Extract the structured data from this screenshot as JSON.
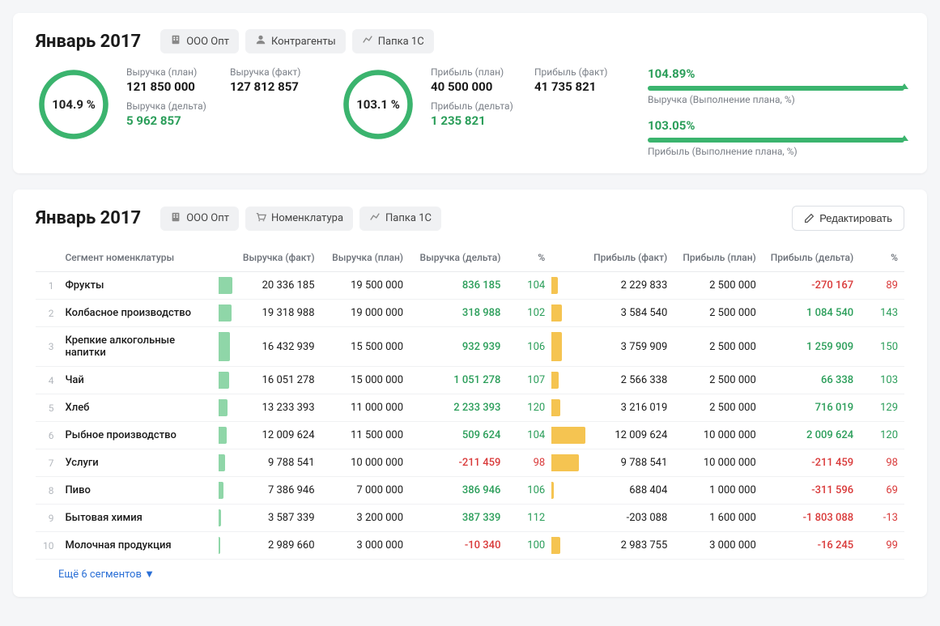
{
  "colors": {
    "green": "#3bb46e",
    "green_text": "#2b9e5a",
    "red_text": "#d93939",
    "amber": "#f5c451",
    "bar_green": "#8fd6a8",
    "track": "#e6e8eb",
    "border": "#f0f1f3"
  },
  "card1": {
    "title": "Январь 2017",
    "chips": [
      {
        "label": "ООО Опт",
        "icon": "building"
      },
      {
        "label": "Контрагенты",
        "icon": "user"
      },
      {
        "label": "Папка 1С",
        "icon": "chart"
      }
    ],
    "gauge1": {
      "pct": 104.9,
      "text": "104.9 %"
    },
    "rev_plan_label": "Выручка (план)",
    "rev_plan": "121 850 000",
    "rev_fact_label": "Выручка (факт)",
    "rev_fact": "127 812 857",
    "rev_delta_label": "Выручка (дельта)",
    "rev_delta": "5 962 857",
    "gauge2": {
      "pct": 103.1,
      "text": "103.1 %"
    },
    "prof_plan_label": "Прибыль (план)",
    "prof_plan": "40 500 000",
    "prof_fact_label": "Прибыль (факт)",
    "prof_fact": "41 735 821",
    "prof_delta_label": "Прибыль (дельта)",
    "prof_delta": "1 235 821",
    "progress": [
      {
        "pct": "104.89%",
        "fill": 100,
        "marker": 100,
        "caption": "Выручка (Выполнение плана, %)"
      },
      {
        "pct": "103.05%",
        "fill": 100,
        "marker": 100,
        "caption": "Прибыль (Выполнение плана, %)"
      }
    ]
  },
  "card2": {
    "title": "Январь 2017",
    "chips": [
      {
        "label": "ООО Опт",
        "icon": "building"
      },
      {
        "label": "Номенклатура",
        "icon": "cart"
      },
      {
        "label": "Папка 1С",
        "icon": "chart"
      }
    ],
    "edit_label": "Редактировать",
    "columns": [
      "Сегмент номенклатуры",
      "Выручка (факт)",
      "Выручка (план)",
      "Выручка (дельта)",
      "%",
      "Прибыль (факт)",
      "Прибыль (план)",
      "Прибыль (дельта)",
      "%"
    ],
    "bar1_max": 20336185,
    "bar2_max": 12009624,
    "rows": [
      {
        "idx": 1,
        "seg": "Фрукты",
        "rf": "20 336 185",
        "rfv": 20336185,
        "rp": "19 500 000",
        "rd": "836 185",
        "rdpos": true,
        "rpc": "104",
        "rpcpos": true,
        "pf": "2 229 833",
        "pfv": 2229833,
        "pp": "2 500 000",
        "pd": "-270 167",
        "pdpos": false,
        "ppc": "89",
        "ppcpos": false
      },
      {
        "idx": 2,
        "seg": "Колбасное производство",
        "rf": "19 318 988",
        "rfv": 19318988,
        "rp": "19 000 000",
        "rd": "318 988",
        "rdpos": true,
        "rpc": "102",
        "rpcpos": true,
        "pf": "3 584 540",
        "pfv": 3584540,
        "pp": "2 500 000",
        "pd": "1 084 540",
        "pdpos": true,
        "ppc": "143",
        "ppcpos": true
      },
      {
        "idx": 3,
        "seg": "Крепкие алкогольные напитки",
        "rf": "16 432 939",
        "rfv": 16432939,
        "rp": "15 500 000",
        "rd": "932 939",
        "rdpos": true,
        "rpc": "106",
        "rpcpos": true,
        "pf": "3 759 909",
        "pfv": 3759909,
        "pp": "2 500 000",
        "pd": "1 259 909",
        "pdpos": true,
        "ppc": "150",
        "ppcpos": true
      },
      {
        "idx": 4,
        "seg": "Чай",
        "rf": "16 051 278",
        "rfv": 16051278,
        "rp": "15 000 000",
        "rd": "1 051 278",
        "rdpos": true,
        "rpc": "107",
        "rpcpos": true,
        "pf": "2 566 338",
        "pfv": 2566338,
        "pp": "2 500 000",
        "pd": "66 338",
        "pdpos": true,
        "ppc": "103",
        "ppcpos": true
      },
      {
        "idx": 5,
        "seg": "Хлеб",
        "rf": "13 233 393",
        "rfv": 13233393,
        "rp": "11 000 000",
        "rd": "2 233 393",
        "rdpos": true,
        "rpc": "120",
        "rpcpos": true,
        "pf": "3 216 019",
        "pfv": 3216019,
        "pp": "2 500 000",
        "pd": "716 019",
        "pdpos": true,
        "ppc": "129",
        "ppcpos": true
      },
      {
        "idx": 6,
        "seg": "Рыбное производство",
        "rf": "12 009 624",
        "rfv": 12009624,
        "rp": "11 500 000",
        "rd": "509 624",
        "rdpos": true,
        "rpc": "104",
        "rpcpos": true,
        "pf": "12 009 624",
        "pfv": 12009624,
        "pp": "10 000 000",
        "pd": "2 009 624",
        "pdpos": true,
        "ppc": "120",
        "ppcpos": true
      },
      {
        "idx": 7,
        "seg": "Услуги",
        "rf": "9 788 541",
        "rfv": 9788541,
        "rp": "10 000 000",
        "rd": "-211 459",
        "rdpos": false,
        "rpc": "98",
        "rpcpos": false,
        "pf": "9 788 541",
        "pfv": 9788541,
        "pp": "10 000 000",
        "pd": "-211 459",
        "pdpos": false,
        "ppc": "98",
        "ppcpos": false
      },
      {
        "idx": 8,
        "seg": "Пиво",
        "rf": "7 386 946",
        "rfv": 7386946,
        "rp": "7 000 000",
        "rd": "386 946",
        "rdpos": true,
        "rpc": "106",
        "rpcpos": true,
        "pf": "688 404",
        "pfv": 688404,
        "pp": "1 000 000",
        "pd": "-311 596",
        "pdpos": false,
        "ppc": "69",
        "ppcpos": false
      },
      {
        "idx": 9,
        "seg": "Бытовая химия",
        "rf": "3 587 339",
        "rfv": 3587339,
        "rp": "3 200 000",
        "rd": "387 339",
        "rdpos": true,
        "rpc": "112",
        "rpcpos": true,
        "pf": "-203 088",
        "pfv": 0,
        "pp": "1 600 000",
        "pd": "-1 803 088",
        "pdpos": false,
        "ppc": "-13",
        "ppcpos": false
      },
      {
        "idx": 10,
        "seg": "Молочная продукция",
        "rf": "2 989 660",
        "rfv": 2989660,
        "rp": "3 000 000",
        "rd": "-10 340",
        "rdpos": false,
        "rpc": "100",
        "rpcpos": true,
        "pf": "2 983 755",
        "pfv": 2983755,
        "pp": "3 000 000",
        "pd": "-16 245",
        "pdpos": false,
        "ppc": "99",
        "ppcpos": false
      }
    ],
    "more_label": "Ещё 6 сегментов ▼"
  }
}
